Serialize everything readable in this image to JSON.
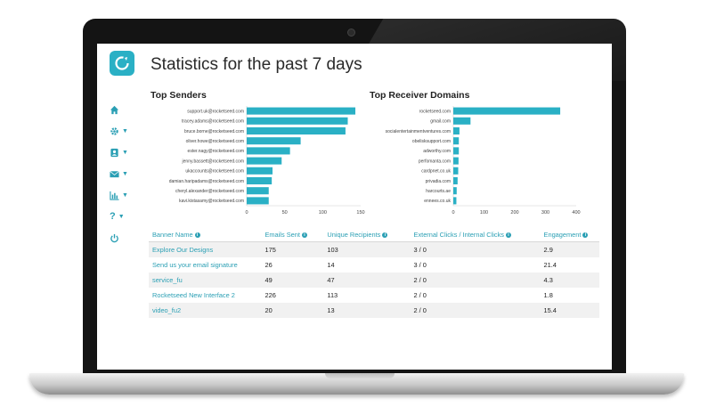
{
  "page": {
    "title": "Statistics for the past 7 days"
  },
  "sidebar": {
    "icons": [
      "home-icon",
      "gear-icon",
      "user-icon",
      "envelope-icon",
      "bar-chart-icon",
      "question-icon",
      "power-icon"
    ]
  },
  "colors": {
    "accent": "#2ab0c5",
    "bar": "#2ab0c5"
  },
  "chart_data": [
    {
      "type": "bar",
      "orientation": "horizontal",
      "title": "Top Senders",
      "categories": [
        "support.uk@rocketseed.com",
        "tracey.adams@rocketseed.com",
        "bruce.borne@rocketseed.com",
        "oliver.howe@rocketseed.com",
        "ester.nagy@rocketseed.com",
        "jenny.bassett@rocketseed.com",
        "ukaccounts@rocketseed.com",
        "damian.haripadams@rocketseed.com",
        "cheryl.alexander@rocketseed.com",
        "kavi.kistasamy@rocketseed.com"
      ],
      "values": [
        143,
        133,
        130,
        71,
        57,
        46,
        34,
        33,
        29,
        29
      ],
      "xticks": [
        "0",
        "50",
        "100",
        "150"
      ],
      "xlim": [
        0,
        150
      ]
    },
    {
      "type": "bar",
      "orientation": "horizontal",
      "title": "Top Receiver Domains",
      "categories": [
        "rocketseed.com",
        "gmail.com",
        "socialentertainmentventures.com",
        "obelisksupport.com",
        "adworthy.com",
        "perfomanta.com",
        "cardpnet.co.uk",
        "privadia.com",
        "harcourts.ae",
        "ennees.co.uk"
      ],
      "values": [
        348,
        56,
        20,
        18,
        18,
        17,
        16,
        14,
        11,
        10
      ],
      "xticks": [
        "0",
        "100",
        "200",
        "300",
        "400"
      ],
      "xlim": [
        0,
        400
      ]
    }
  ],
  "table": {
    "headers": [
      "Banner Name",
      "Emails Sent",
      "Unique Recipients",
      "External Clicks / Internal Clicks",
      "Engagement"
    ],
    "rows": [
      [
        "Explore Our Designs",
        "175",
        "103",
        "3 / 0",
        "2.9"
      ],
      [
        "Send us your email signature",
        "26",
        "14",
        "3 / 0",
        "21.4"
      ],
      [
        "service_fu",
        "49",
        "47",
        "2 / 0",
        "4.3"
      ],
      [
        "Rocketseed New Interface 2",
        "226",
        "113",
        "2 / 0",
        "1.8"
      ],
      [
        "video_fu2",
        "20",
        "13",
        "2 / 0",
        "15.4"
      ]
    ]
  }
}
